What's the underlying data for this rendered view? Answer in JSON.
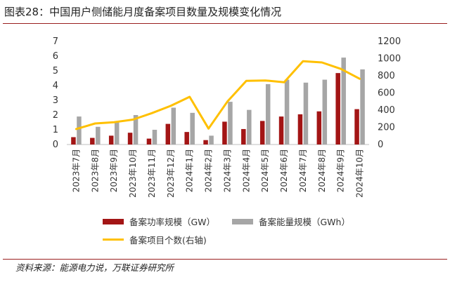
{
  "title": "图表28：中国用户侧储能月度备案项目数量及规模变化情况",
  "source": "资料来源：能源电力说，万联证券研究所",
  "colors": {
    "power": "#A31515",
    "energy": "#A6A6A6",
    "count": "#FFC000",
    "rule": "#9A1E1E"
  },
  "chart_data": {
    "type": "bar",
    "categories": [
      "2023年7月",
      "2023年8月",
      "2023年9月",
      "2023年10月",
      "2023年11月",
      "2023年12月",
      "2024年1月",
      "2024年2月",
      "2024年3月",
      "2024年4月",
      "2024年5月",
      "2024年6月",
      "2024年7月",
      "2024年8月",
      "2024年9月",
      "2024年10月"
    ],
    "series": [
      {
        "name": "备案功率规模（GW）",
        "type": "bar",
        "axis": "left",
        "values": [
          0.5,
          0.45,
          0.6,
          0.8,
          0.4,
          1.4,
          0.85,
          0.3,
          1.55,
          1.05,
          1.6,
          1.9,
          2.05,
          2.25,
          4.85,
          2.4
        ]
      },
      {
        "name": "备案能量规模（GWh）",
        "type": "bar",
        "axis": "left",
        "values": [
          1.9,
          1.2,
          1.5,
          2.0,
          1.0,
          2.5,
          2.15,
          0.6,
          2.9,
          2.35,
          4.1,
          4.4,
          4.2,
          4.4,
          5.9,
          5.1
        ]
      },
      {
        "name": "备案项目个数(右轴)",
        "type": "line",
        "axis": "right",
        "values": [
          180,
          245,
          260,
          290,
          365,
          450,
          555,
          185,
          500,
          740,
          745,
          725,
          970,
          955,
          880,
          765
        ]
      }
    ],
    "y_left": {
      "min": 0,
      "max": 7,
      "ticks": [
        "0",
        "1",
        "2",
        "3",
        "4",
        "5",
        "6",
        "7"
      ]
    },
    "y_right": {
      "min": 0,
      "max": 1200,
      "ticks": [
        "0",
        "200",
        "400",
        "600",
        "800",
        "1000",
        "1200"
      ]
    },
    "grid": false,
    "legend_position": "bottom"
  }
}
